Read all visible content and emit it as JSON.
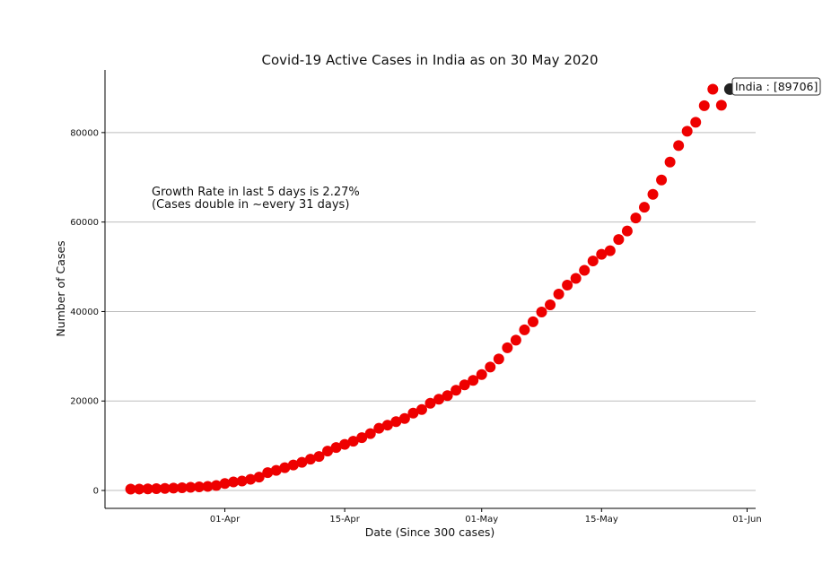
{
  "chart_data": {
    "type": "scatter",
    "title": "Covid-19 Active Cases in India as on 30 May 2020",
    "xlabel": "Date (Since 300 cases)",
    "ylabel": "Number of Cases",
    "x_start": "2020-03-21",
    "x_range": [
      "2020-03-18",
      "2020-06-02"
    ],
    "ylim": [
      -4000,
      94000
    ],
    "x_ticks": [
      {
        "date": "2020-04-01",
        "label": "01-Apr"
      },
      {
        "date": "2020-04-15",
        "label": "15-Apr"
      },
      {
        "date": "2020-05-01",
        "label": "01-May"
      },
      {
        "date": "2020-05-15",
        "label": "15-May"
      },
      {
        "date": "2020-06-01",
        "label": "01-Jun"
      }
    ],
    "y_ticks": [
      0,
      20000,
      40000,
      60000,
      80000
    ],
    "grid": "horizontal",
    "series": [
      {
        "color": "#ee0000",
        "values": [
          300,
          320,
          350,
          400,
          460,
          530,
          600,
          700,
          800,
          920,
          1100,
          1550,
          1900,
          2100,
          2500,
          3000,
          4000,
          4500,
          5100,
          5700,
          6300,
          7000,
          7600,
          8800,
          9600,
          10300,
          11000,
          11800,
          12700,
          13900,
          14600,
          15400,
          16100,
          17300,
          18100,
          19500,
          20400,
          21200,
          22400,
          23600,
          24600,
          25900,
          27600,
          29400,
          31900,
          33600,
          35900,
          37700,
          39900,
          41500,
          43900,
          45900,
          47400,
          49200,
          51300,
          52800,
          53600,
          56100,
          58000,
          60900,
          63300,
          66200,
          69400,
          73400,
          77100,
          80300,
          82300,
          86000,
          89700,
          86100
        ]
      }
    ],
    "highlight": {
      "date": "2020-05-30",
      "value": 89706,
      "color": "#222222",
      "label": "India :  [89706]"
    },
    "annotation_lines": [
      "Growth Rate in last 5 days is 2.27%",
      "(Cases double in ~every 31 days)"
    ]
  }
}
